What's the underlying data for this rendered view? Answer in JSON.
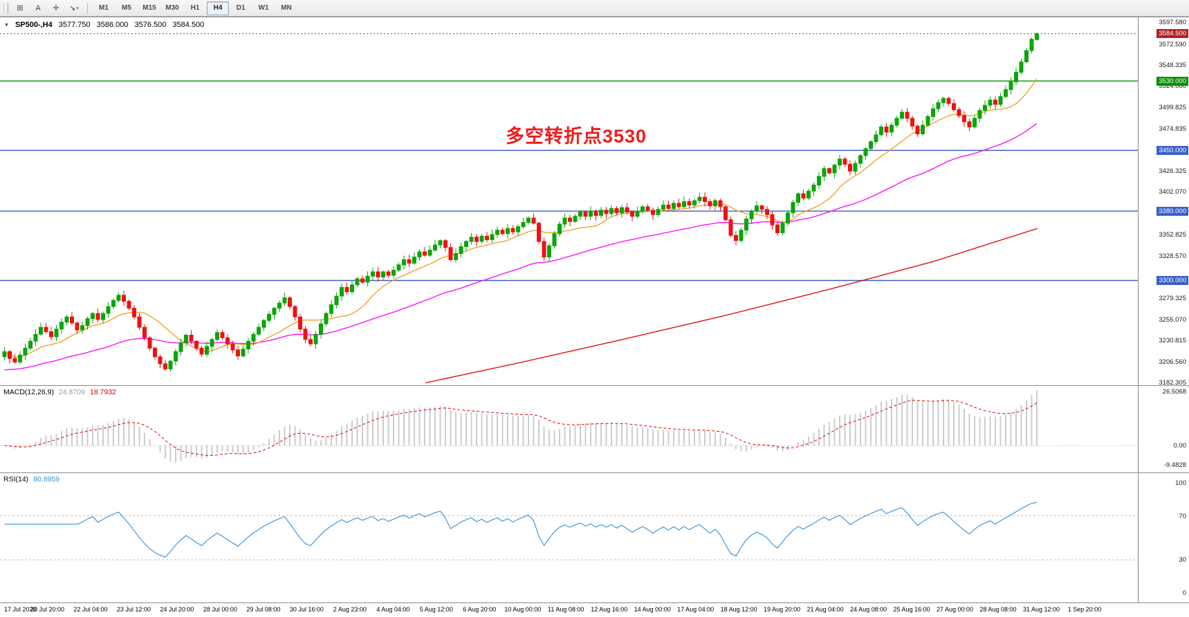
{
  "toolbar": {
    "left_tools": [
      {
        "name": "chart-grid-tool",
        "glyph": "⊞"
      },
      {
        "name": "text-tool",
        "glyph": "A"
      },
      {
        "name": "crosshair-tool",
        "glyph": "✛"
      },
      {
        "name": "draw-tools-dropdown",
        "glyph": "↘",
        "caret": "▾"
      }
    ],
    "timeframes": [
      "M1",
      "M5",
      "M15",
      "M30",
      "H1",
      "H4",
      "D1",
      "W1",
      "MN"
    ],
    "active_timeframe": "H4"
  },
  "symbol_header": {
    "dropdown_icon": "▼",
    "symbol_period": "SP500-,H4",
    "open": "3577.750",
    "high": "3586.000",
    "low": "3576.500",
    "close": "3584.500"
  },
  "main_chart": {
    "annotation": {
      "text": "多空转折点3530",
      "color": "#ee1c1c"
    },
    "price_axis": {
      "view_min": 3180,
      "view_max": 3601,
      "ticks": [
        "3597.580",
        "3572.590",
        "3548.335",
        "3524.080",
        "3499.825",
        "3474.835",
        "3426.325",
        "3402.070",
        "3352.825",
        "3328.570",
        "3279.325",
        "3255.070",
        "3230.815",
        "3206.560",
        "3182.305"
      ]
    },
    "levels": [
      {
        "value": 3530.0,
        "label": "3530.000",
        "color": "#089000"
      },
      {
        "value": 3450.0,
        "label": "3450.000",
        "color": "#3a5fc8"
      },
      {
        "value": 3380.0,
        "label": "3380.000",
        "color": "#3a5fc8"
      },
      {
        "value": 3300.0,
        "label": "3300.000",
        "color": "#3a5fc8"
      }
    ],
    "current_price": {
      "value": 3584.5,
      "label": "3584.500",
      "box_color": "#b22222"
    }
  },
  "chart_data": {
    "type": "candlestick",
    "symbol": "SP500-",
    "timeframe": "H4",
    "ohlc_last": {
      "open": 3577.75,
      "high": 3586.0,
      "low": 3576.5,
      "close": 3584.5
    },
    "closes": [
      3218,
      3210,
      3206,
      3214,
      3222,
      3230,
      3238,
      3246,
      3241,
      3235,
      3244,
      3252,
      3258,
      3251,
      3243,
      3248,
      3256,
      3262,
      3255,
      3262,
      3270,
      3277,
      3283,
      3276,
      3268,
      3258,
      3246,
      3234,
      3222,
      3212,
      3204,
      3198,
      3207,
      3218,
      3228,
      3237,
      3230,
      3222,
      3215,
      3224,
      3232,
      3240,
      3234,
      3227,
      3220,
      3213,
      3221,
      3230,
      3238,
      3246,
      3254,
      3261,
      3268,
      3274,
      3280,
      3270,
      3258,
      3244,
      3232,
      3227,
      3238,
      3250,
      3262,
      3272,
      3282,
      3292,
      3287,
      3295,
      3302,
      3298,
      3305,
      3310,
      3304,
      3310,
      3306,
      3312,
      3318,
      3324,
      3320,
      3327,
      3333,
      3329,
      3335,
      3341,
      3346,
      3338,
      3324,
      3331,
      3339,
      3345,
      3350,
      3345,
      3351,
      3347,
      3353,
      3358,
      3354,
      3360,
      3356,
      3362,
      3367,
      3372,
      3366,
      3345,
      3327,
      3340,
      3354,
      3365,
      3372,
      3368,
      3374,
      3379,
      3374,
      3380,
      3375,
      3381,
      3377,
      3383,
      3378,
      3384,
      3379,
      3374,
      3380,
      3385,
      3381,
      3376,
      3382,
      3387,
      3383,
      3389,
      3385,
      3391,
      3387,
      3392,
      3396,
      3391,
      3386,
      3392,
      3385,
      3370,
      3352,
      3346,
      3358,
      3371,
      3380,
      3386,
      3382,
      3376,
      3364,
      3355,
      3366,
      3378,
      3390,
      3400,
      3395,
      3403,
      3410,
      3420,
      3429,
      3424,
      3433,
      3440,
      3434,
      3426,
      3435,
      3444,
      3452,
      3460,
      3468,
      3477,
      3471,
      3479,
      3487,
      3494,
      3487,
      3478,
      3469,
      3479,
      3489,
      3498,
      3505,
      3510,
      3504,
      3497,
      3490,
      3483,
      3477,
      3487,
      3496,
      3502,
      3508,
      3503,
      3512,
      3520,
      3529,
      3540,
      3552,
      3565,
      3578,
      3584.5
    ],
    "moving_averages": {
      "fast": {
        "period": 12,
        "color": "#f29b17"
      },
      "medium": {
        "period": 50,
        "seed": 3196,
        "color": "#ff00ff"
      },
      "slow_points": [
        [
          0.41,
          3182
        ],
        [
          0.5,
          3205
        ],
        [
          0.6,
          3232
        ],
        [
          0.7,
          3260
        ],
        [
          0.8,
          3290
        ],
        [
          0.9,
          3322
        ],
        [
          1.0,
          3360
        ]
      ],
      "slow_color": "#e00000"
    },
    "macd": {
      "label": "MACD(12,26,9)",
      "value_main": "24.8709",
      "value_signal": "18.7932",
      "fast": 12,
      "slow": 26,
      "signal": 9,
      "axis": {
        "max": 26.5068,
        "min": -9.4828,
        "ticks": [
          {
            "v": 26.5068,
            "label": "26.5068"
          },
          {
            "v": 0,
            "label": "0.00"
          },
          {
            "v": -9.4828,
            "label": "-9.4828"
          }
        ]
      }
    },
    "rsi": {
      "label": "RSI(14)",
      "value": "80.8959",
      "period": 14,
      "levels": [
        70,
        30
      ],
      "axis_ticks": [
        {
          "v": 100,
          "label": "100"
        },
        {
          "v": 70,
          "label": "70"
        },
        {
          "v": 30,
          "label": "30"
        },
        {
          "v": 0,
          "label": "0"
        }
      ]
    }
  },
  "time_axis": {
    "labels": [
      "17 Jul 2020",
      "20 Jul 20:00",
      "22 Jul 04:00",
      "23 Jul 12:00",
      "24 Jul 20:00",
      "28 Jul 00:00",
      "29 Jul 08:00",
      "30 Jul 16:00",
      "2 Aug 23:00",
      "4 Aug 04:00",
      "5 Aug 12:00",
      "6 Aug 20:00",
      "10 Aug 00:00",
      "11 Aug 08:00",
      "12 Aug 16:00",
      "14 Aug 00:00",
      "17 Aug 04:00",
      "18 Aug 12:00",
      "19 Aug 20:00",
      "21 Aug 04:00",
      "24 Aug 08:00",
      "25 Aug 16:00",
      "27 Aug 00:00",
      "28 Aug 08:00",
      "31 Aug 12:00",
      "1 Sep 20:00"
    ]
  },
  "colors": {
    "bull": "#0aa50a",
    "bear": "#ee1111",
    "macd_hist": "#cccccc",
    "macd_signal": "#e00000",
    "rsi_line": "#2f8fdd",
    "level_dotted": "#c0c0c0"
  }
}
